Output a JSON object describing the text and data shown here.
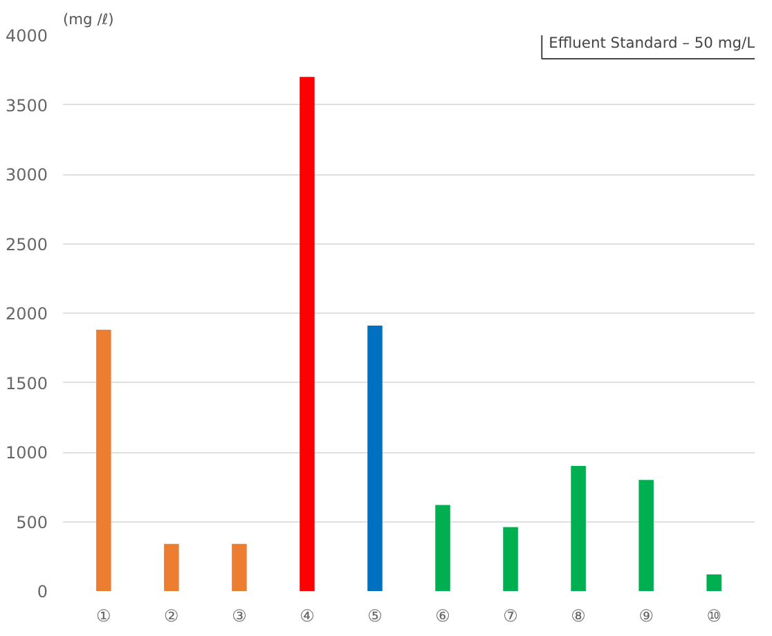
{
  "chart_data": {
    "type": "bar",
    "ylabel": "(mg /ℓ)",
    "categories": [
      "①",
      "②",
      "③",
      "④",
      "⑤",
      "⑥",
      "⑦",
      "⑧",
      "⑨",
      "⑩"
    ],
    "values": [
      1880,
      340,
      340,
      3700,
      1910,
      620,
      460,
      900,
      800,
      120
    ],
    "colors": [
      "#ed7d31",
      "#ed7d31",
      "#ed7d31",
      "#ff0000",
      "#0070c0",
      "#00b050",
      "#00b050",
      "#00b050",
      "#00b050",
      "#00b050"
    ],
    "ylim": [
      0,
      4000
    ],
    "yticks": [
      0,
      500,
      1000,
      1500,
      2000,
      2500,
      3000,
      3500,
      4000
    ],
    "grid": "y",
    "annotations": [
      "Effluent Standard – 50 mg/L"
    ]
  }
}
